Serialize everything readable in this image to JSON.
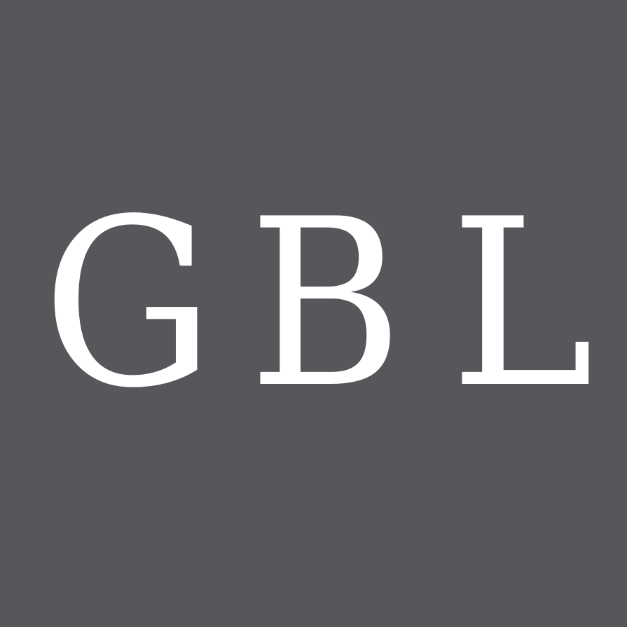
{
  "logo": {
    "letters": [
      "G",
      "B",
      "L"
    ],
    "text_color": "#ffffff",
    "background_color": "#58565a"
  }
}
